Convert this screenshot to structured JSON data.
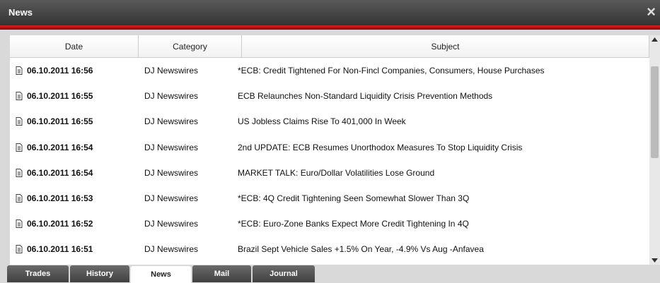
{
  "window": {
    "title": "News",
    "close": "×"
  },
  "table": {
    "columns": [
      "Date",
      "Category",
      "Subject"
    ],
    "rows": [
      [
        "06.10.2011 16:56",
        "DJ Newswires",
        "*ECB: Credit Tightened For Non-Fincl Companies, Consumers, House Purchases"
      ],
      [
        "06.10.2011 16:55",
        "DJ Newswires",
        "ECB Relaunches Non-Standard Liquidity Crisis Prevention Methods"
      ],
      [
        "06.10.2011 16:55",
        "DJ Newswires",
        "US Jobless Claims Rise To 401,000 In Week"
      ],
      [
        "06.10.2011 16:54",
        "DJ Newswires",
        "2nd UPDATE: ECB Resumes Unorthodox Measures To Stop Liquidity Crisis"
      ],
      [
        "06.10.2011 16:54",
        "DJ Newswires",
        "MARKET TALK: Euro/Dollar Volatilities Lose Ground"
      ],
      [
        "06.10.2011 16:53",
        "DJ Newswires",
        "*ECB: 4Q Credit Tightening Seen Somewhat Slower Than 3Q"
      ],
      [
        "06.10.2011 16:52",
        "DJ Newswires",
        "*ECB: Euro-Zone Banks Expect More Credit Tightening In 4Q"
      ],
      [
        "06.10.2011 16:51",
        "DJ Newswires",
        "Brazil Sept Vehicle Sales +1.5% On Year, -4.9% Vs Aug -Anfavea"
      ]
    ]
  },
  "tabs": [
    "Trades",
    "History",
    "News",
    "Mail",
    "Journal"
  ],
  "active_tab": 2
}
